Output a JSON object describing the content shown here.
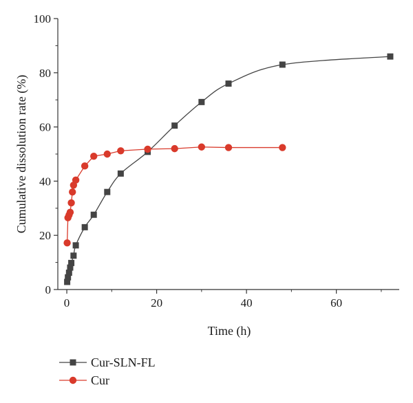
{
  "chart_data": {
    "type": "line",
    "title": "",
    "xlabel": "Time (h)",
    "ylabel": "Cumulative dissolution rate (%)",
    "xlim": [
      -2,
      74
    ],
    "ylim": [
      0,
      100
    ],
    "xticks": [
      0,
      20,
      40,
      60
    ],
    "xtick_labels": [
      "0",
      "20",
      "40",
      "60"
    ],
    "yticks": [
      0,
      20,
      40,
      60,
      80,
      100
    ],
    "ytick_labels": [
      "0",
      "20",
      "40",
      "60",
      "80",
      "100"
    ],
    "grid": false,
    "legend_position": "bottom-left",
    "series": [
      {
        "name": "Cur-SLN-FL",
        "color": "#444444",
        "marker": "square",
        "smooth": true,
        "points": [
          {
            "x": 0.083,
            "y": 2.8
          },
          {
            "x": 0.25,
            "y": 4.5
          },
          {
            "x": 0.5,
            "y": 6.2
          },
          {
            "x": 0.75,
            "y": 8.1
          },
          {
            "x": 1,
            "y": 9.8
          },
          {
            "x": 1.5,
            "y": 12.5
          },
          {
            "x": 2,
            "y": 16.3
          },
          {
            "x": 4,
            "y": 23.0
          },
          {
            "x": 6,
            "y": 27.6
          },
          {
            "x": 9,
            "y": 36.0
          },
          {
            "x": 12,
            "y": 42.8
          },
          {
            "x": 18,
            "y": 50.8
          },
          {
            "x": 24,
            "y": 60.5
          },
          {
            "x": 30,
            "y": 69.2
          },
          {
            "x": 36,
            "y": 76.0
          },
          {
            "x": 48,
            "y": 83.0
          },
          {
            "x": 72,
            "y": 86.0
          }
        ]
      },
      {
        "name": "Cur",
        "color": "#d93a2b",
        "marker": "circle",
        "smooth": false,
        "points": [
          {
            "x": 0.083,
            "y": 17.2
          },
          {
            "x": 0.25,
            "y": 26.5
          },
          {
            "x": 0.5,
            "y": 27.5
          },
          {
            "x": 0.75,
            "y": 28.5
          },
          {
            "x": 1,
            "y": 32.0
          },
          {
            "x": 1.25,
            "y": 36.0
          },
          {
            "x": 1.5,
            "y": 38.5
          },
          {
            "x": 2,
            "y": 40.4
          },
          {
            "x": 4,
            "y": 45.6
          },
          {
            "x": 6,
            "y": 49.2
          },
          {
            "x": 9,
            "y": 50.0
          },
          {
            "x": 12,
            "y": 51.2
          },
          {
            "x": 18,
            "y": 51.8
          },
          {
            "x": 24,
            "y": 52.0
          },
          {
            "x": 30,
            "y": 52.6
          },
          {
            "x": 36,
            "y": 52.4
          },
          {
            "x": 48,
            "y": 52.4
          }
        ]
      }
    ]
  }
}
